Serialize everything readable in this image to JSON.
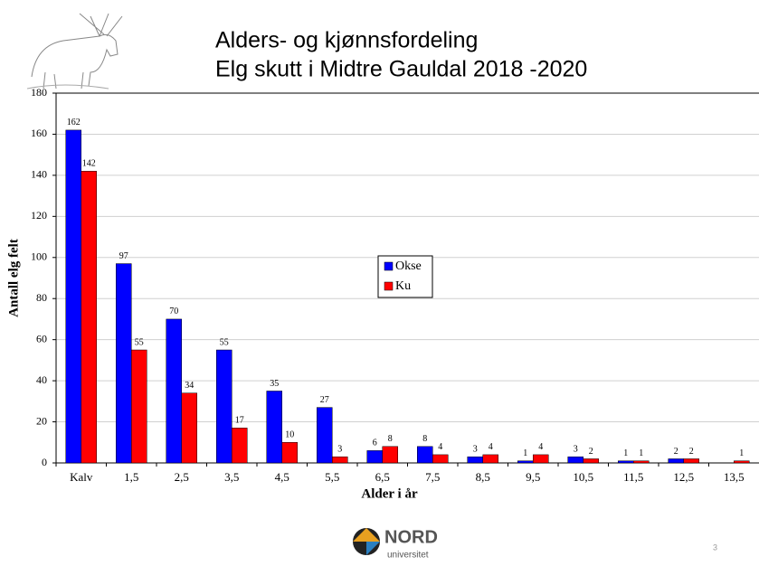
{
  "chart_data": {
    "type": "bar",
    "title": [
      "Alders- og kjønnsfordeling",
      "Elg skutt i Midtre Gauldal 2018 -2020"
    ],
    "x_label": "Alder i år",
    "y_label": "Antall elg felt",
    "categories": [
      "Kalv",
      "1,5",
      "2,5",
      "3,5",
      "4,5",
      "5,5",
      "6,5",
      "7,5",
      "8,5",
      "9,5",
      "10,5",
      "11,5",
      "12,5",
      "13,5"
    ],
    "series": [
      {
        "name": "Okse",
        "color": "#0000ff",
        "values": [
          162,
          97,
          70,
          55,
          35,
          27,
          6,
          8,
          3,
          1,
          3,
          1,
          2,
          null
        ]
      },
      {
        "name": "Ku",
        "color": "#ff0000",
        "values": [
          142,
          55,
          34,
          17,
          10,
          3,
          8,
          4,
          4,
          4,
          2,
          1,
          2,
          1
        ]
      }
    ],
    "ylim": [
      0,
      180
    ],
    "yticks": [
      0,
      20,
      40,
      60,
      80,
      100,
      120,
      140,
      160,
      180
    ],
    "grid": true,
    "legend": "center"
  },
  "logo": {
    "name": "NORD",
    "subtitle": "universitet"
  },
  "page_number": "3"
}
